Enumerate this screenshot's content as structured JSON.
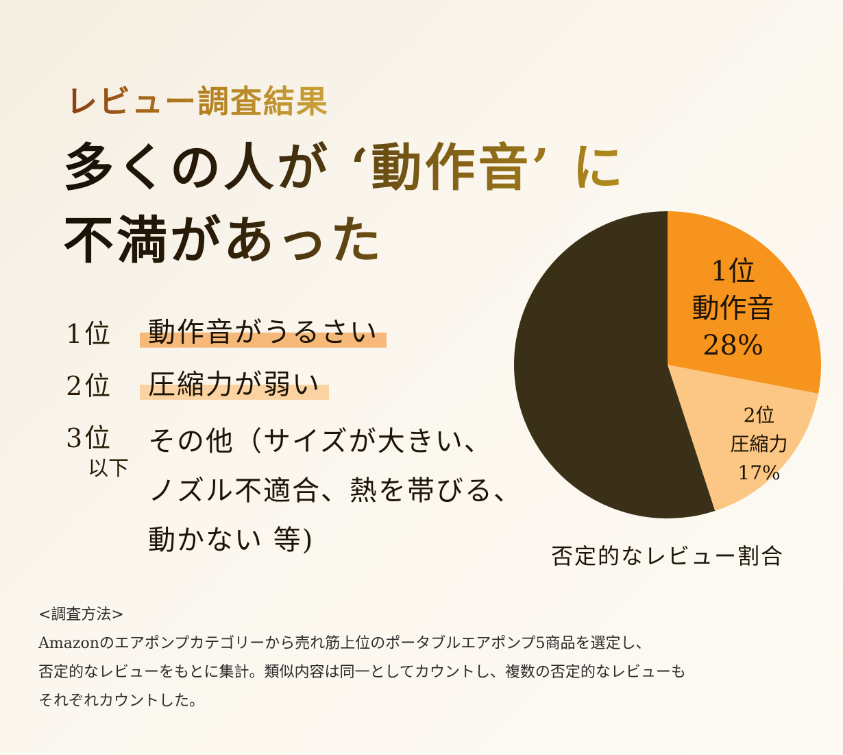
{
  "header": {
    "eyebrow": "レビュー調査結果",
    "headline_line1": "多くの人が ‘動作音’ に",
    "headline_line2": "不満があった"
  },
  "ranking": [
    {
      "rank": "1位",
      "text": "動作音がうるさい",
      "highlight_color": "#f6b97a"
    },
    {
      "rank": "2位",
      "text": "圧縮力が弱い",
      "highlight_color": "#fbd3a2"
    },
    {
      "rank": "3位",
      "sub": "以下",
      "lines": [
        "その他（サイズが大きい、",
        "ノズル不適合、熱を帯びる、",
        "動かない 等)"
      ]
    }
  ],
  "chart_data": {
    "type": "pie",
    "title": "否定的なレビュー割合",
    "slices": [
      {
        "rank": "1位",
        "label": "動作音",
        "value": 28,
        "value_text": "28%",
        "color": "#f7941d",
        "text_color": "#1c1406"
      },
      {
        "rank": "2位",
        "label": "圧縮力",
        "value": 17,
        "value_text": "17%",
        "color": "#fcc784",
        "text_color": "#1c1406"
      },
      {
        "label": "",
        "value": 55,
        "value_text": "",
        "color": "#3a3018"
      }
    ],
    "start_angle_deg": 0,
    "direction": "clockwise"
  },
  "method": {
    "heading": "<調査方法>",
    "lines": [
      "Amazonのエアポンプカテゴリーから売れ筋上位のポータブルエアポンプ5商品を選定し、",
      "否定的なレビューをもとに集計。類似内容は同一としてカウントし、複数の否定的なレビューも",
      "それぞれカウントした。"
    ]
  }
}
